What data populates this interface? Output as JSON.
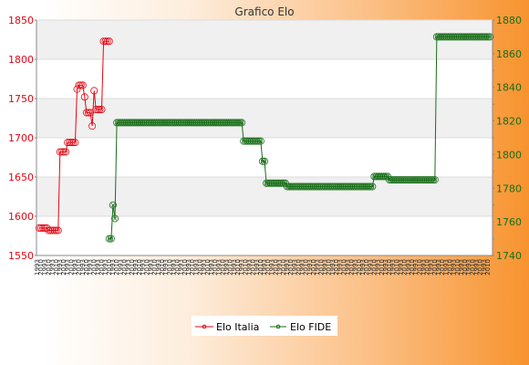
{
  "chart_data": {
    "type": "line",
    "title": "Grafico Elo",
    "grid": true,
    "legend_position": "bottom-center",
    "left_axis": {
      "ylim": [
        1550,
        1850
      ],
      "ticks": [
        1550,
        1600,
        1650,
        1700,
        1750,
        1800,
        1850
      ]
    },
    "right_axis": {
      "ylim": [
        1740,
        1880
      ],
      "ticks": [
        1740,
        1760,
        1780,
        1800,
        1820,
        1840,
        1860,
        1880
      ]
    },
    "series": [
      {
        "name": "Elo Italia",
        "axis": "left",
        "color": "#e30613",
        "values": [
          1585,
          1585,
          1585,
          1585,
          1585,
          1582,
          1582,
          1582,
          1582,
          1582,
          1582,
          1682,
          1682,
          1682,
          1682,
          1694,
          1694,
          1694,
          1694,
          1694,
          1762,
          1767,
          1767,
          1767,
          1752,
          1732,
          1732,
          1732,
          1715,
          1760,
          1736,
          1736,
          1736,
          1736,
          1823,
          1823,
          1823,
          1823
        ]
      },
      {
        "name": "Elo FIDE",
        "axis": "right",
        "color": "#1a6e1a",
        "start_index": 37,
        "values": [
          1750,
          1750,
          1770,
          1762,
          1819,
          1819,
          1819,
          1819,
          1819,
          1819,
          1819,
          1819,
          1819,
          1819,
          1819,
          1819,
          1819,
          1819,
          1819,
          1819,
          1819,
          1819,
          1819,
          1819,
          1819,
          1819,
          1819,
          1819,
          1819,
          1819,
          1819,
          1819,
          1819,
          1819,
          1819,
          1819,
          1819,
          1819,
          1819,
          1819,
          1819,
          1819,
          1819,
          1819,
          1819,
          1819,
          1819,
          1819,
          1819,
          1819,
          1819,
          1819,
          1819,
          1819,
          1819,
          1819,
          1819,
          1819,
          1819,
          1819,
          1819,
          1819,
          1819,
          1819,
          1819,
          1819,
          1819,
          1819,
          1819,
          1819,
          1819,
          1808,
          1808,
          1808,
          1808,
          1808,
          1808,
          1808,
          1808,
          1808,
          1808,
          1796,
          1796,
          1783,
          1783,
          1783,
          1783,
          1783,
          1783,
          1783,
          1783,
          1783,
          1783,
          1783,
          1781,
          1781,
          1781,
          1781,
          1781,
          1781,
          1781,
          1781,
          1781,
          1781,
          1781,
          1781,
          1781,
          1781,
          1781,
          1781,
          1781,
          1781,
          1781,
          1781,
          1781,
          1781,
          1781,
          1781,
          1781,
          1781,
          1781,
          1781,
          1781,
          1781,
          1781,
          1781,
          1781,
          1781,
          1781,
          1781,
          1781,
          1781,
          1781,
          1781,
          1781,
          1781,
          1781,
          1781,
          1781,
          1781,
          1787,
          1787,
          1787,
          1787,
          1787,
          1787,
          1787,
          1787,
          1785,
          1785,
          1785,
          1785,
          1785,
          1785,
          1785,
          1785,
          1785,
          1785,
          1785,
          1785,
          1785,
          1785,
          1785,
          1785,
          1785,
          1785,
          1785,
          1785,
          1785,
          1785,
          1785,
          1785,
          1785,
          1870,
          1870,
          1870,
          1870,
          1870,
          1870,
          1870,
          1870,
          1870,
          1870,
          1870,
          1870,
          1870,
          1870,
          1870,
          1870,
          1870,
          1870,
          1870,
          1870,
          1870,
          1870,
          1870,
          1870,
          1870,
          1870,
          1870,
          1870,
          1870
        ]
      }
    ],
    "x_label_samples": [
      "1993",
      "2005",
      "2010",
      "2019"
    ]
  },
  "legend": {
    "items": [
      {
        "label": "Elo Italia",
        "color": "#e30613"
      },
      {
        "label": "Elo FIDE",
        "color": "#1a6e1a"
      }
    ]
  },
  "colors": {
    "left_axis_text": "#e30613",
    "right_axis_text": "#1a6e1a",
    "band": "#f0f0f0"
  }
}
